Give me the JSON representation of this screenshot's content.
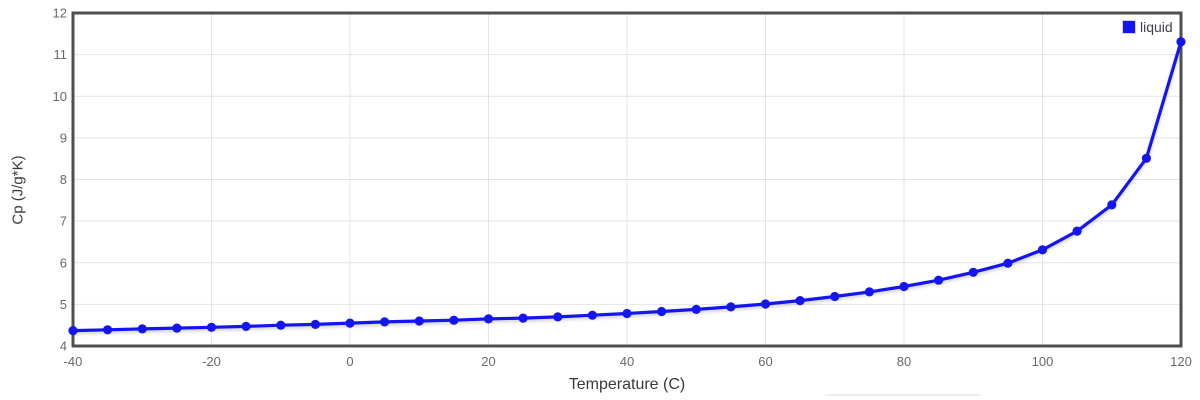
{
  "colors": {
    "background": "#ffffff",
    "axis_border": "#4e4e4e",
    "grid": "#e4e4e4",
    "tick_label": "#696969",
    "axis_title": "#3a3a3a",
    "series_blue": "#1515f0",
    "legend_text": "#40404c",
    "legend_swatch_border": "#ccd3ea"
  },
  "chart_data": {
    "type": "line",
    "title": "",
    "xlabel": "Temperature (C)",
    "ylabel": "Cp (J/g*K)",
    "xlim": [
      -40,
      120
    ],
    "ylim": [
      4,
      12
    ],
    "x_ticks": [
      -40,
      -20,
      0,
      20,
      40,
      60,
      80,
      100,
      120
    ],
    "y_ticks": [
      4,
      5,
      6,
      7,
      8,
      9,
      10,
      11,
      12
    ],
    "grid": true,
    "legend_position": "top-right",
    "series": [
      {
        "name": "liquid",
        "color": "#1515f0",
        "marker": "circle",
        "marker_radius": 4.6,
        "x": [
          -40,
          -35,
          -30,
          -25,
          -20,
          -15,
          -10,
          -5,
          0,
          5,
          10,
          15,
          20,
          25,
          30,
          35,
          40,
          45,
          50,
          55,
          60,
          65,
          70,
          75,
          80,
          85,
          90,
          95,
          100,
          105,
          110,
          115,
          120
        ],
        "y": [
          4.37,
          4.39,
          4.41,
          4.43,
          4.45,
          4.47,
          4.5,
          4.52,
          4.55,
          4.58,
          4.6,
          4.62,
          4.65,
          4.67,
          4.7,
          4.74,
          4.78,
          4.83,
          4.88,
          4.94,
          5.01,
          5.09,
          5.19,
          5.3,
          5.43,
          5.58,
          5.77,
          5.99,
          6.31,
          6.76,
          7.39,
          8.51,
          11.31
        ]
      }
    ]
  }
}
